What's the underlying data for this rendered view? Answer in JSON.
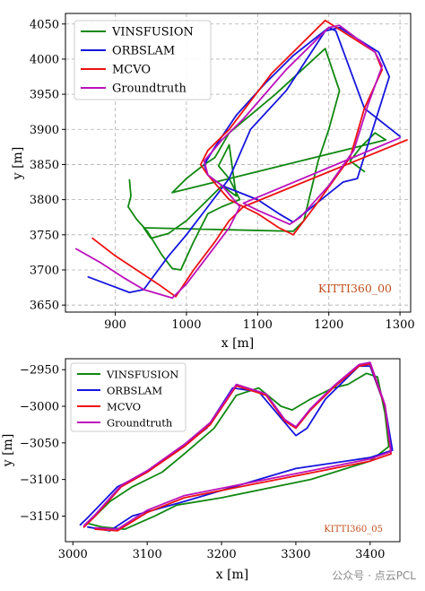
{
  "watermark": "公众号 · 点云PCL",
  "chart_data": [
    {
      "type": "line",
      "xlabel": "x [m]",
      "ylabel": "y [m]",
      "xlim": [
        830,
        1315
      ],
      "ylim": [
        3640,
        4065
      ],
      "xticks": [
        900,
        1000,
        1100,
        1200,
        1300
      ],
      "yticks": [
        3650,
        3700,
        3750,
        3800,
        3850,
        3900,
        3950,
        4000,
        4050
      ],
      "grid": true,
      "legend": "top-left",
      "annotation": "KITTI360_00",
      "series": [
        {
          "name": "VINSFUSION",
          "color": "#118811",
          "points": [
            [
              920,
              3828
            ],
            [
              922,
              3805
            ],
            [
              918,
              3790
            ],
            [
              930,
              3772
            ],
            [
              945,
              3755
            ],
            [
              965,
              3722
            ],
            [
              980,
              3702
            ],
            [
              992,
              3700
            ],
            [
              1010,
              3740
            ],
            [
              1030,
              3780
            ],
            [
              1050,
              3790
            ],
            [
              1075,
              3800
            ],
            [
              1060,
              3830
            ],
            [
              1045,
              3848
            ],
            [
              1060,
              3878
            ],
            [
              1070,
              3805
            ],
            [
              1050,
              3820
            ],
            [
              1025,
              3795
            ],
            [
              1000,
              3770
            ],
            [
              975,
              3752
            ],
            [
              950,
              3745
            ],
            [
              940,
              3760
            ],
            [
              1150,
              3755
            ],
            [
              1165,
              3770
            ],
            [
              1185,
              3855
            ],
            [
              1200,
              3900
            ],
            [
              1215,
              3955
            ],
            [
              1195,
              4015
            ],
            [
              1125,
              3950
            ],
            [
              1060,
              3895
            ],
            [
              1040,
              3860
            ],
            [
              1025,
              3850
            ],
            [
              1000,
              3830
            ],
            [
              980,
              3810
            ],
            [
              1280,
              3885
            ],
            [
              1265,
              3895
            ],
            [
              1245,
              3875
            ],
            [
              1230,
              3855
            ],
            [
              1250,
              3840
            ]
          ]
        },
        {
          "name": "ORBSLAM",
          "color": "#1515dd",
          "points": [
            [
              862,
              3690
            ],
            [
              920,
              3668
            ],
            [
              940,
              3672
            ],
            [
              975,
              3720
            ],
            [
              1000,
              3750
            ],
            [
              1030,
              3790
            ],
            [
              1060,
              3830
            ],
            [
              1090,
              3900
            ],
            [
              1140,
              3955
            ],
            [
              1195,
              4040
            ],
            [
              1215,
              4045
            ],
            [
              1270,
              4010
            ],
            [
              1285,
              3975
            ],
            [
              1240,
              3830
            ],
            [
              1220,
              3825
            ],
            [
              1150,
              3768
            ],
            [
              1130,
              3780
            ],
            [
              1100,
              3800
            ],
            [
              1050,
              3820
            ],
            [
              1030,
              3835
            ],
            [
              1025,
              3850
            ],
            [
              1040,
              3875
            ],
            [
              1070,
              3920
            ],
            [
              1110,
              3965
            ],
            [
              1150,
              4005
            ],
            [
              1200,
              4045
            ],
            [
              1210,
              4040
            ],
            [
              1250,
              3930
            ],
            [
              1300,
              3890
            ]
          ]
        },
        {
          "name": "MCVO",
          "color": "#ee1111",
          "points": [
            [
              868,
              3745
            ],
            [
              900,
              3720
            ],
            [
              930,
              3700
            ],
            [
              960,
              3680
            ],
            [
              985,
              3662
            ],
            [
              1010,
              3700
            ],
            [
              1040,
              3740
            ],
            [
              1060,
              3770
            ],
            [
              1080,
              3790
            ],
            [
              1060,
              3800
            ],
            [
              1030,
              3835
            ],
            [
              1020,
              3850
            ],
            [
              1030,
              3870
            ],
            [
              1060,
              3900
            ],
            [
              1090,
              3940
            ],
            [
              1120,
              3980
            ],
            [
              1150,
              4010
            ],
            [
              1195,
              4055
            ],
            [
              1265,
              4010
            ],
            [
              1275,
              3985
            ],
            [
              1250,
              3930
            ],
            [
              1230,
              3860
            ],
            [
              1180,
              3790
            ],
            [
              1150,
              3750
            ],
            [
              1130,
              3760
            ],
            [
              1100,
              3780
            ],
            [
              1080,
              3790
            ],
            [
              1310,
              3885
            ]
          ]
        },
        {
          "name": "Groundtruth",
          "color": "#bb11bb",
          "points": [
            [
              845,
              3730
            ],
            [
              880,
              3710
            ],
            [
              910,
              3690
            ],
            [
              940,
              3672
            ],
            [
              980,
              3660
            ],
            [
              1000,
              3680
            ],
            [
              1030,
              3720
            ],
            [
              1060,
              3760
            ],
            [
              1075,
              3790
            ],
            [
              1050,
              3820
            ],
            [
              1030,
              3835
            ],
            [
              1025,
              3855
            ],
            [
              1050,
              3885
            ],
            [
              1080,
              3915
            ],
            [
              1110,
              3950
            ],
            [
              1140,
              3985
            ],
            [
              1170,
              4015
            ],
            [
              1200,
              4045
            ],
            [
              1215,
              4048
            ],
            [
              1265,
              4010
            ],
            [
              1275,
              3990
            ],
            [
              1255,
              3935
            ],
            [
              1235,
              3870
            ],
            [
              1200,
              3820
            ],
            [
              1160,
              3775
            ],
            [
              1145,
              3765
            ],
            [
              1100,
              3785
            ],
            [
              1080,
              3795
            ],
            [
              1300,
              3888
            ]
          ]
        }
      ]
    },
    {
      "type": "line",
      "xlabel": "x [m]",
      "ylabel": "y [m]",
      "xlim": [
        2990,
        3440
      ],
      "ylim": [
        -3185,
        -2935
      ],
      "xticks": [
        3000,
        3100,
        3200,
        3300,
        3400
      ],
      "yticks": [
        -2950,
        -3000,
        -3050,
        -3100,
        -3150
      ],
      "grid": false,
      "legend": "top-left",
      "annotation": "KITTI360_05",
      "series": [
        {
          "name": "VINSFUSION",
          "color": "#118811",
          "points": [
            [
              3370,
              -2970
            ],
            [
              3395,
              -2955
            ],
            [
              3410,
              -2960
            ],
            [
              3420,
              -3010
            ],
            [
              3425,
              -3055
            ],
            [
              3400,
              -3075
            ],
            [
              3320,
              -3100
            ],
            [
              3200,
              -3125
            ],
            [
              3140,
              -3135
            ],
            [
              3110,
              -3150
            ],
            [
              3070,
              -3168
            ],
            [
              3040,
              -3165
            ],
            [
              3020,
              -3160
            ],
            [
              3050,
              -3130
            ],
            [
              3080,
              -3110
            ],
            [
              3120,
              -3090
            ],
            [
              3150,
              -3065
            ],
            [
              3190,
              -3030
            ],
            [
              3220,
              -2985
            ],
            [
              3250,
              -2975
            ],
            [
              3280,
              -3000
            ],
            [
              3295,
              -3005
            ],
            [
              3320,
              -2990
            ],
            [
              3350,
              -2975
            ],
            [
              3370,
              -2970
            ]
          ]
        },
        {
          "name": "ORBSLAM",
          "color": "#1515dd",
          "points": [
            [
              3010,
              -3162
            ],
            [
              3020,
              -3152
            ],
            [
              3060,
              -3110
            ],
            [
              3100,
              -3090
            ],
            [
              3140,
              -3060
            ],
            [
              3180,
              -3030
            ],
            [
              3215,
              -2975
            ],
            [
              3250,
              -2980
            ],
            [
              3275,
              -3010
            ],
            [
              3300,
              -3040
            ],
            [
              3315,
              -3030
            ],
            [
              3340,
              -2990
            ],
            [
              3385,
              -2945
            ],
            [
              3400,
              -2945
            ],
            [
              3420,
              -3000
            ],
            [
              3430,
              -3060
            ],
            [
              3400,
              -3070
            ],
            [
              3300,
              -3085
            ],
            [
              3150,
              -3130
            ],
            [
              3080,
              -3150
            ],
            [
              3050,
              -3170
            ],
            [
              3020,
              -3165
            ]
          ]
        },
        {
          "name": "MCVO",
          "color": "#ee1111",
          "points": [
            [
              3015,
              -3165
            ],
            [
              3030,
              -3150
            ],
            [
              3065,
              -3110
            ],
            [
              3100,
              -3090
            ],
            [
              3150,
              -3055
            ],
            [
              3185,
              -3025
            ],
            [
              3220,
              -2972
            ],
            [
              3260,
              -2985
            ],
            [
              3285,
              -3020
            ],
            [
              3300,
              -3030
            ],
            [
              3320,
              -3005
            ],
            [
              3350,
              -2975
            ],
            [
              3385,
              -2945
            ],
            [
              3400,
              -2942
            ],
            [
              3420,
              -3000
            ],
            [
              3428,
              -3065
            ],
            [
              3400,
              -3075
            ],
            [
              3300,
              -3095
            ],
            [
              3150,
              -3125
            ],
            [
              3100,
              -3145
            ],
            [
              3060,
              -3170
            ],
            [
              3030,
              -3168
            ]
          ]
        },
        {
          "name": "Groundtruth",
          "color": "#bb11bb",
          "points": [
            [
              3015,
              -3163
            ],
            [
              3030,
              -3148
            ],
            [
              3065,
              -3108
            ],
            [
              3100,
              -3088
            ],
            [
              3150,
              -3052
            ],
            [
              3185,
              -3022
            ],
            [
              3220,
              -2970
            ],
            [
              3260,
              -2983
            ],
            [
              3285,
              -3018
            ],
            [
              3300,
              -3028
            ],
            [
              3320,
              -3003
            ],
            [
              3350,
              -2973
            ],
            [
              3385,
              -2943
            ],
            [
              3400,
              -2940
            ],
            [
              3420,
              -2998
            ],
            [
              3428,
              -3062
            ],
            [
              3400,
              -3072
            ],
            [
              3300,
              -3092
            ],
            [
              3150,
              -3122
            ],
            [
              3100,
              -3142
            ],
            [
              3060,
              -3168
            ],
            [
              3030,
              -3166
            ]
          ]
        }
      ]
    }
  ]
}
